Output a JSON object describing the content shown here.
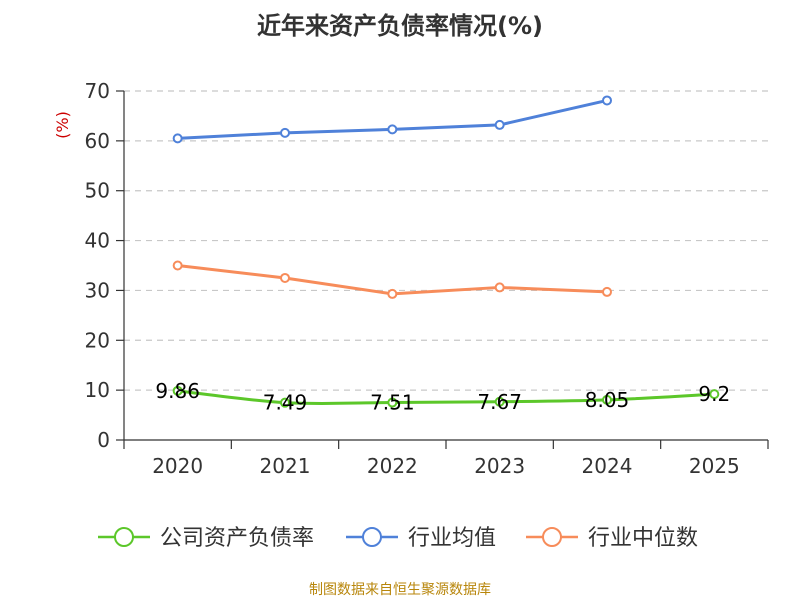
{
  "chart_data": {
    "type": "line",
    "title": "近年来资产负债率情况(%)",
    "ylabel": "(%)",
    "xlabel": "",
    "categories": [
      "2020",
      "2021",
      "2022",
      "2023",
      "2024",
      "2025"
    ],
    "ylim": [
      0,
      70
    ],
    "yticks": [
      0,
      10,
      20,
      30,
      40,
      50,
      60,
      70
    ],
    "grid": true,
    "legend_position": "bottom",
    "series": [
      {
        "name": "公司资产负债率",
        "color": "#5cc72a",
        "values": [
          9.86,
          7.49,
          7.51,
          7.67,
          8.05,
          9.2
        ],
        "data_labels": [
          "9.86",
          "7.49",
          "7.51",
          "7.67",
          "8.05",
          "9.2"
        ]
      },
      {
        "name": "行业均值",
        "color": "#4f81d9",
        "values": [
          60.5,
          61.6,
          62.3,
          63.2,
          68.1,
          null
        ]
      },
      {
        "name": "行业中位数",
        "color": "#f78c5a",
        "values": [
          35.0,
          32.5,
          29.3,
          30.6,
          29.7,
          null
        ]
      }
    ]
  },
  "source_text": "制图数据来自恒生聚源数据库"
}
